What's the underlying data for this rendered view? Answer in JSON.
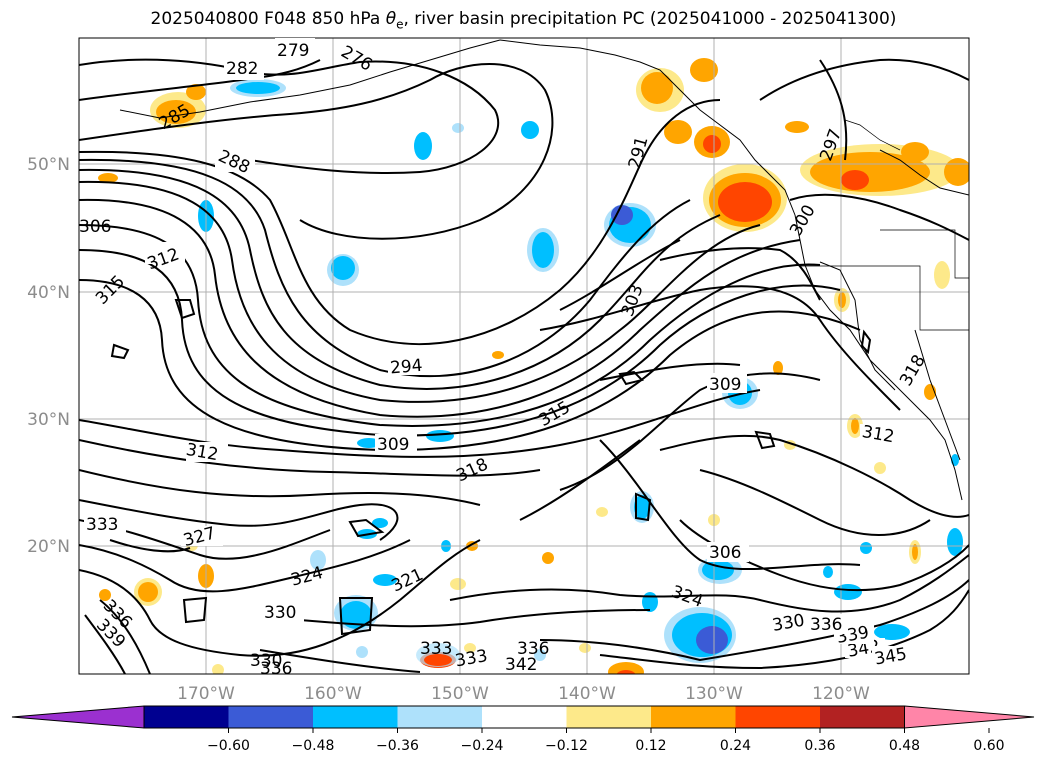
{
  "title": {
    "prefix": "2025040800 F048 850 hPa ",
    "symbol": "θ",
    "symbol_sub": "e",
    "suffix": ", river basin precipitation PC (2025041000 - 2025041300)"
  },
  "map": {
    "lat_labels": [
      "50°N",
      "40°N",
      "30°N",
      "20°N"
    ],
    "lon_labels": [
      "170°W",
      "160°W",
      "150°W",
      "140°W",
      "130°W",
      "120°W"
    ],
    "contour_labels": [
      "279",
      "282",
      "276",
      "285",
      "288",
      "291",
      "297",
      "306",
      "312",
      "315",
      "300",
      "303",
      "294",
      "309",
      "315",
      "318",
      "312",
      "312",
      "309",
      "306",
      "318",
      "327",
      "324",
      "321",
      "333",
      "330",
      "330",
      "336",
      "339",
      "333",
      "336",
      "330",
      "333",
      "336",
      "342",
      "342",
      "339",
      "345",
      "324",
      "336"
    ]
  },
  "colorbar": {
    "colors": [
      "#9b30d0",
      "#000090",
      "#3b5bd6",
      "#00bfff",
      "#aee1fb",
      "#ffffff",
      "#fde98a",
      "#ffa500",
      "#ff4500",
      "#b22222",
      "#ff85a8"
    ],
    "ticks": [
      "−0.60",
      "−0.48",
      "−0.36",
      "−0.24",
      "−0.12",
      "0.12",
      "0.24",
      "0.36",
      "0.48",
      "0.60"
    ]
  },
  "fill_colors": {
    "light_blue": "#aee1fb",
    "blue": "#00bfff",
    "dark_blue": "#3b5bd6",
    "yellow": "#fde98a",
    "orange": "#ffa500",
    "red_orange": "#ff4500"
  }
}
